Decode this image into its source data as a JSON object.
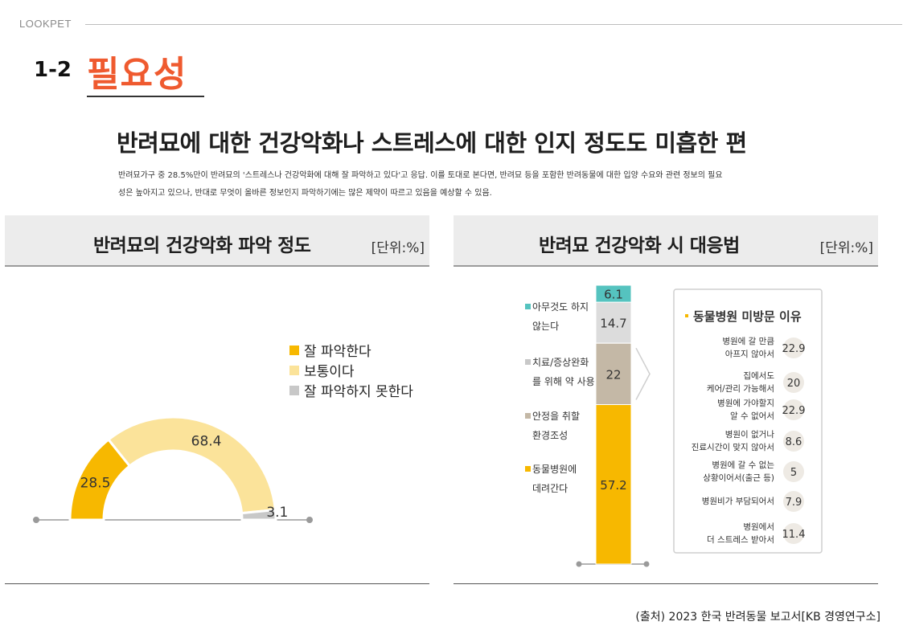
{
  "header": {
    "brand": "LOOKPET",
    "section_number": "1-2",
    "section_title": "필요성"
  },
  "headline": "반려묘에 대한 건강악화나 스트레스에 대한 인지 정도도 미흡한 편",
  "description": [
    "반려묘가구 중 28.5%만이 반려묘의 '스트레스나 건강악화에 대해 잘 파악하고 있다'고 응답. 이를 토대로 본다면, 반려묘 등을 포함한 반려동물에 대한 입양 수요와 관련 정보의 필요",
    "성은 높아지고 있으나, 반대로 무엇이 올바른 정보인지 파악하기에는 많은 제약이 따르고 있음을 예상할 수 있음."
  ],
  "source": "(출처) 2023 한국 반려동물 보고서[KB 경영연구소]",
  "chart_data": [
    {
      "type": "pie",
      "subtype": "semi-donut",
      "title": "반려묘의 건강악화 파악 정도",
      "unit": "[단위:%]",
      "legend_position": "right",
      "slices": [
        {
          "label": "잘 파악한다",
          "value": 28.5,
          "color": "#f7b800"
        },
        {
          "label": "보통이다",
          "value": 68.4,
          "color": "#fbe39a"
        },
        {
          "label": "잘 파악하지 못한다",
          "value": 3.1,
          "color": "#c8c8c8"
        }
      ]
    },
    {
      "type": "bar",
      "subtype": "stacked-100",
      "title": "반려묘 건강악화 시 대응법",
      "unit": "[단위:%]",
      "segments": [
        {
          "label": "아무것도 하지 않는다",
          "label_lines": [
            "아무것도 하지",
            "않는다"
          ],
          "value": 6.1,
          "color": "#55c3bf"
        },
        {
          "label": "치료/증상완화를 위해 약 사용",
          "label_lines": [
            "치료/증상완화",
            "를 위해 약 사용"
          ],
          "value": 14.7,
          "color": "#dcdcdc"
        },
        {
          "label": "안정을 취할 환경조성",
          "label_lines": [
            "안정을 취할",
            "환경조성"
          ],
          "value": 22.0,
          "color": "#c4b8a6"
        },
        {
          "label": "동물병원에 데려간다",
          "label_lines": [
            "동물병원에",
            "데려간다"
          ],
          "value": 57.2,
          "color": "#f7b800"
        }
      ],
      "callout": {
        "title": "동물병원 미방문 이유",
        "items": [
          {
            "label": "병원에 갈 만큼 아프지 않아서",
            "label_lines": [
              "병원에 갈 만큼",
              "아프지 않아서"
            ],
            "value": 22.9
          },
          {
            "label": "집에서도 케어/관리 가능해서",
            "label_lines": [
              "집에서도",
              "케어/관리 가능해서"
            ],
            "value": 20.0
          },
          {
            "label": "병원에 가야할지 알 수 없어서",
            "label_lines": [
              "병원에 가야할지",
              "알 수 없어서"
            ],
            "value": 22.9
          },
          {
            "label": "병원이 없거나 진료시간이 맞지 않아서",
            "label_lines": [
              "병원이 없거나",
              "진료시간이 맞지 않아서"
            ],
            "value": 8.6
          },
          {
            "label": "병원에 갈 수 없는 상황이어서(출근 등)",
            "label_lines": [
              "병원에 갈 수 없는",
              "상황이어서(출근 등)"
            ],
            "value": 5.0
          },
          {
            "label": "병원비가 부담되어서",
            "label_lines": [
              "병원비가 부담되어서"
            ],
            "value": 7.9
          },
          {
            "label": "병원에서 더 스트레스 받아서",
            "label_lines": [
              "병원에서",
              "더 스트레스 받아서"
            ],
            "value": 11.4
          }
        ]
      }
    }
  ]
}
